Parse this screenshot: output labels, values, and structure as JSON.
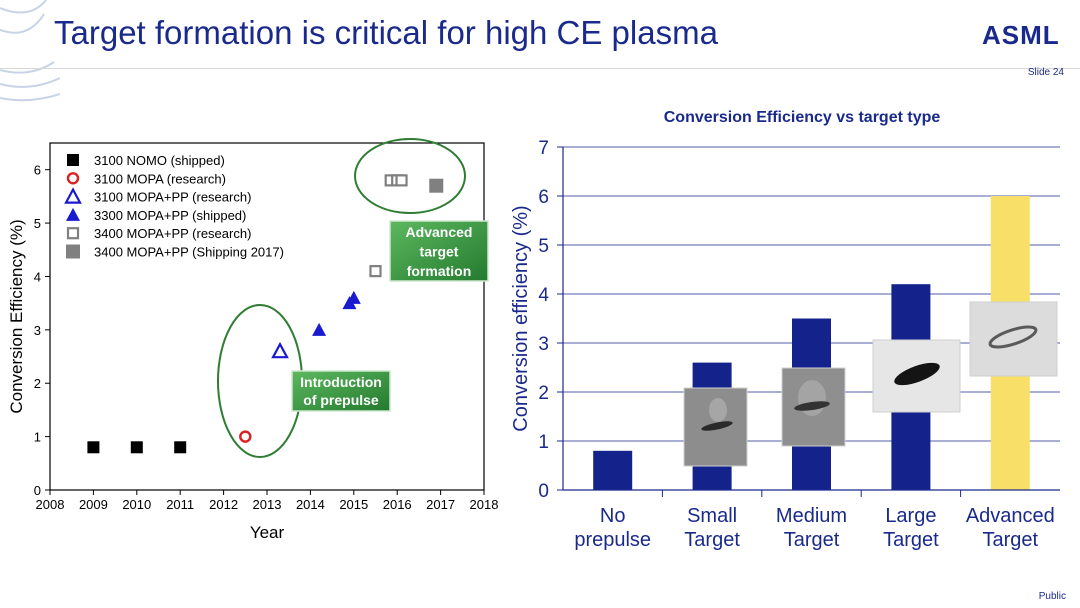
{
  "slide": {
    "title": "Target formation is critical for high CE plasma",
    "logo": "ASML",
    "slide_number": "Slide 24",
    "classification": "Public"
  },
  "colors": {
    "navy": "#1a2a8c",
    "bar": "#14238c",
    "advanced_bar": "#f8df68",
    "green": "#2f8a3a",
    "red": "#dd2020",
    "blue": "#1a1ad0",
    "gray": "#808080"
  },
  "chart_data": [
    {
      "type": "scatter",
      "xlabel": "Year",
      "ylabel": "Conversion Efficiency (%)",
      "xlim": [
        2008,
        2018
      ],
      "ylim": [
        0,
        6.5
      ],
      "x_ticks": [
        "2008",
        "2009",
        "2010",
        "2011",
        "2012",
        "2013",
        "2014",
        "2015",
        "2016",
        "2017",
        "2018"
      ],
      "y_ticks": [
        "0",
        "1",
        "2",
        "3",
        "4",
        "5",
        "6"
      ],
      "legend_position": "top-left",
      "series": [
        {
          "name": "3100 NOMO (shipped)",
          "marker": "square-filled",
          "color": "#000000",
          "points": [
            [
              2009,
              0.8
            ],
            [
              2010,
              0.8
            ],
            [
              2011,
              0.8
            ]
          ]
        },
        {
          "name": "3100 MOPA (research)",
          "marker": "circle-open",
          "color": "#dd2020",
          "points": [
            [
              2012.5,
              1.0
            ]
          ]
        },
        {
          "name": "3100 MOPA+PP (research)",
          "marker": "triangle-open",
          "color": "#1a1ad0",
          "points": [
            [
              2013.3,
              2.6
            ]
          ]
        },
        {
          "name": "3300 MOPA+PP (shipped)",
          "marker": "triangle-filled",
          "color": "#1a1ad0",
          "points": [
            [
              2014.2,
              3.0
            ],
            [
              2014.9,
              3.5
            ],
            [
              2015.0,
              3.6
            ]
          ]
        },
        {
          "name": "3400 MOPA+PP (research)",
          "marker": "square-open",
          "color": "#808080",
          "points": [
            [
              2015.5,
              4.1
            ],
            [
              2015.85,
              5.8
            ],
            [
              2016.0,
              5.8
            ],
            [
              2016.1,
              5.8
            ]
          ]
        },
        {
          "name": "3400 MOPA+PP (Shipping 2017)",
          "marker": "square-filled",
          "color": "#808080",
          "points": [
            [
              2016.9,
              5.7
            ]
          ]
        }
      ],
      "annotations": [
        {
          "lines": [
            "Introduction",
            "of prepulse"
          ]
        },
        {
          "lines": [
            "Advanced",
            "target",
            "formation"
          ]
        }
      ]
    },
    {
      "type": "bar",
      "title": "Conversion Efficiency vs target type",
      "ylabel": "Conversion efficiency (%)",
      "ylim": [
        0,
        7
      ],
      "y_ticks": [
        "0",
        "1",
        "2",
        "3",
        "4",
        "5",
        "6",
        "7"
      ],
      "grid": true,
      "categories": [
        [
          "No",
          "prepulse"
        ],
        [
          "Small",
          "Target"
        ],
        [
          "Medium",
          "Target"
        ],
        [
          "Large",
          "Target"
        ],
        [
          "Advanced",
          "Target"
        ]
      ],
      "values": [
        0.8,
        2.6,
        3.5,
        4.2,
        6.0
      ],
      "bar_colors": [
        "#14238c",
        "#14238c",
        "#14238c",
        "#14238c",
        "#f8df68"
      ]
    }
  ]
}
